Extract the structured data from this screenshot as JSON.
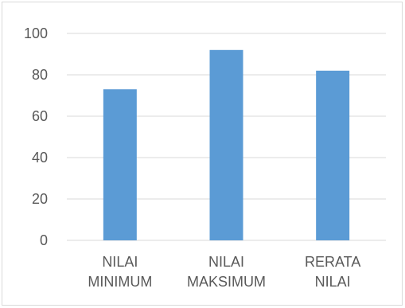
{
  "chart_data": {
    "type": "bar",
    "categories": [
      [
        "NILAI",
        "MINIMUM"
      ],
      [
        "NILAI",
        "MAKSIMUM"
      ],
      [
        "RERATA",
        "NILAI"
      ]
    ],
    "values": [
      73,
      92,
      82
    ],
    "title": "",
    "xlabel": "",
    "ylabel": "",
    "ylim": [
      0,
      100
    ],
    "yticks": [
      "0",
      "20",
      "40",
      "60",
      "80",
      "100"
    ],
    "grid": true,
    "legend": "none",
    "bar_color": "#5b9bd5",
    "grid_color": "#d9d9d9",
    "text_color": "#595959"
  }
}
